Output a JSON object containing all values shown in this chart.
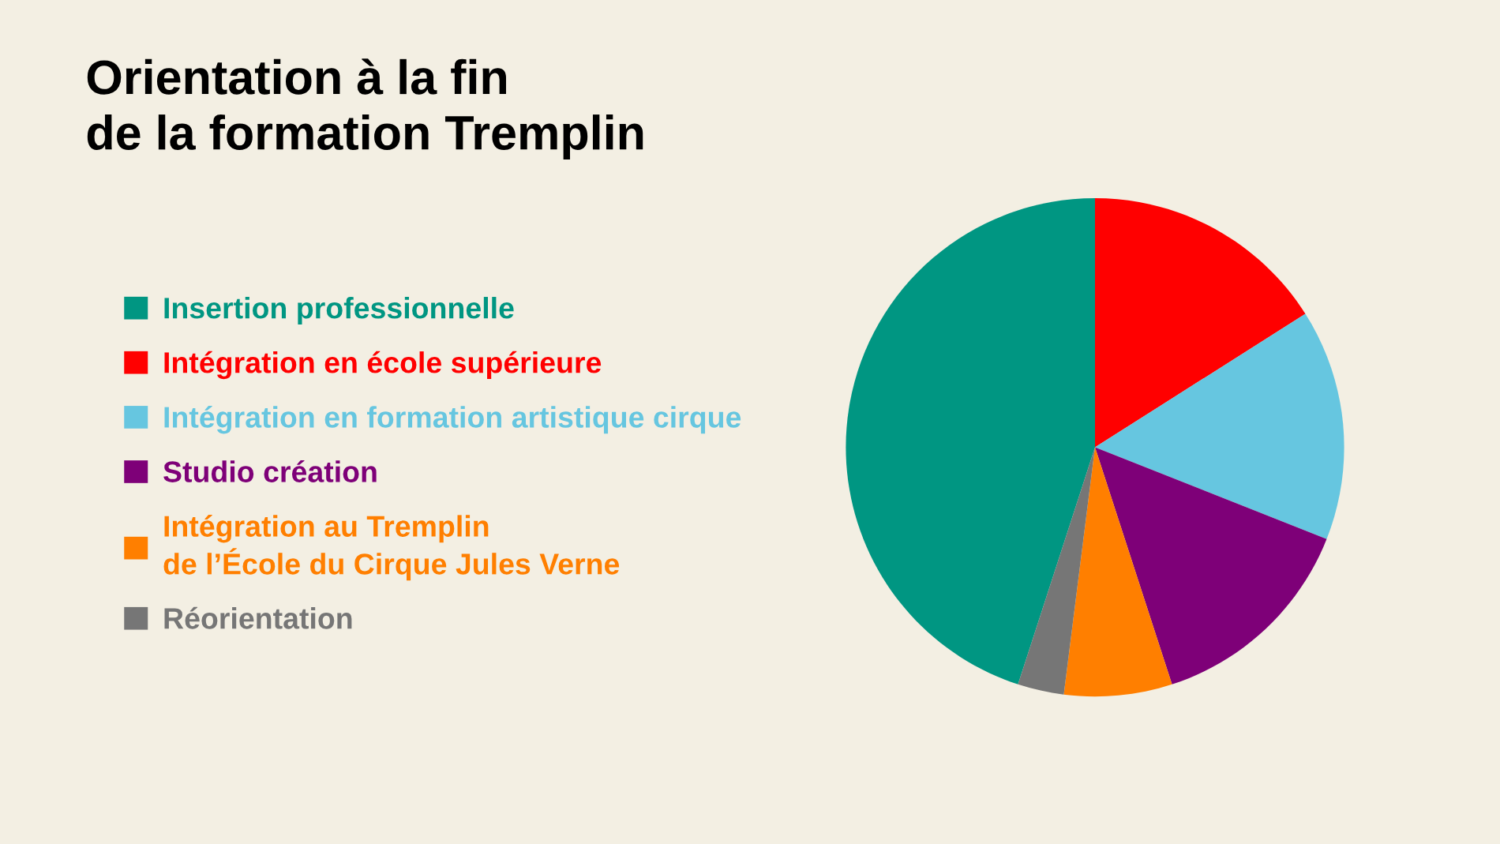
{
  "chart_data": {
    "type": "pie",
    "title": "Orientation à la fin\nde la formation Tremplin",
    "categories": [
      "Insertion professionnelle",
      "Intégration en école supérieure",
      "Intégration en formation artistique cirque",
      "Studio création",
      "Intégration au Tremplin\nde l’École du Cirque Jules Verne",
      "Réorientation"
    ],
    "values": [
      45,
      16,
      15,
      14,
      7,
      3
    ],
    "colors": [
      "#009682",
      "#ff0000",
      "#66c6e0",
      "#7e0078",
      "#ff7f00",
      "#767676"
    ],
    "legend": "left"
  }
}
